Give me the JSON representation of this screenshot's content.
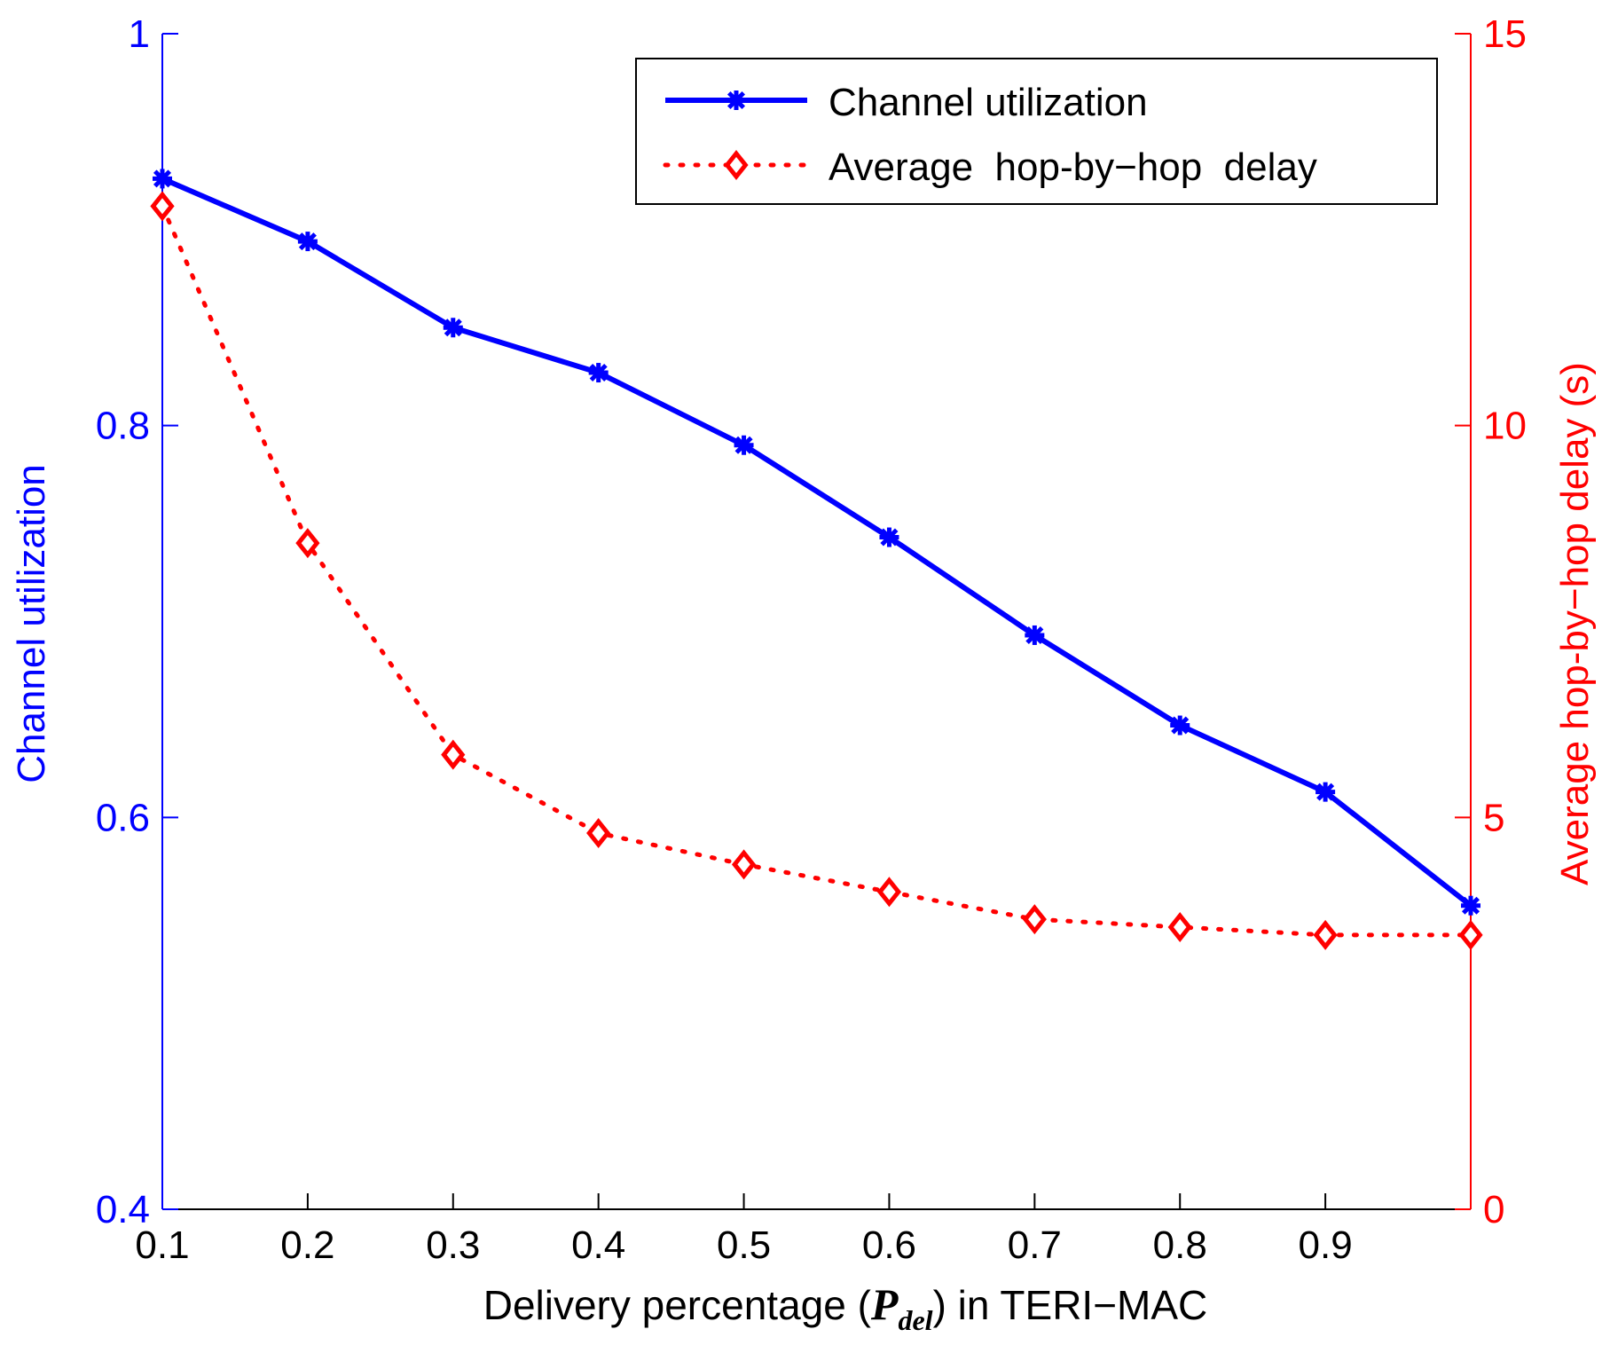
{
  "chart_data": {
    "type": "line",
    "title": "",
    "xlabel": {
      "prefix": "Delivery percentage (",
      "symbol": "P",
      "subscript": "del",
      "suffix": ") in TERI−MAC"
    },
    "ylabel_left": "Channel utilization",
    "ylabel_right": "Average hop-by−hop delay (s)",
    "x": [
      0.1,
      0.2,
      0.3,
      0.4,
      0.5,
      0.6,
      0.7,
      0.8,
      0.9,
      1.0
    ],
    "xlim": [
      0.1,
      1.0
    ],
    "ylim_left": [
      0.4,
      1.0
    ],
    "ylim_right": [
      0,
      15
    ],
    "x_ticks": [
      "0.1",
      "0.2",
      "0.3",
      "0.4",
      "0.5",
      "0.6",
      "0.7",
      "0.8",
      "0.9"
    ],
    "y_ticks_left": [
      "0.4",
      "0.6",
      "0.8",
      "1"
    ],
    "y_ticks_right": [
      "0",
      "5",
      "10",
      "15"
    ],
    "grid": false,
    "legend_position": "top-right",
    "series": [
      {
        "name": "Channel utilization",
        "axis": "left",
        "color": "#0000ff",
        "line_style": "solid",
        "marker": "asterisk",
        "values": [
          0.926,
          0.894,
          0.85,
          0.827,
          0.79,
          0.743,
          0.693,
          0.647,
          0.613,
          0.555
        ]
      },
      {
        "name": "Average  hop-by−hop  delay",
        "axis": "right",
        "color": "#ff0000",
        "line_style": "dotted",
        "marker": "diamond",
        "values": [
          12.8,
          8.5,
          5.8,
          4.8,
          4.4,
          4.05,
          3.7,
          3.6,
          3.5,
          3.5
        ]
      }
    ],
    "colors": {
      "left_axis": "#0000ff",
      "right_axis": "#ff0000",
      "bottom_axis": "#000000"
    }
  }
}
